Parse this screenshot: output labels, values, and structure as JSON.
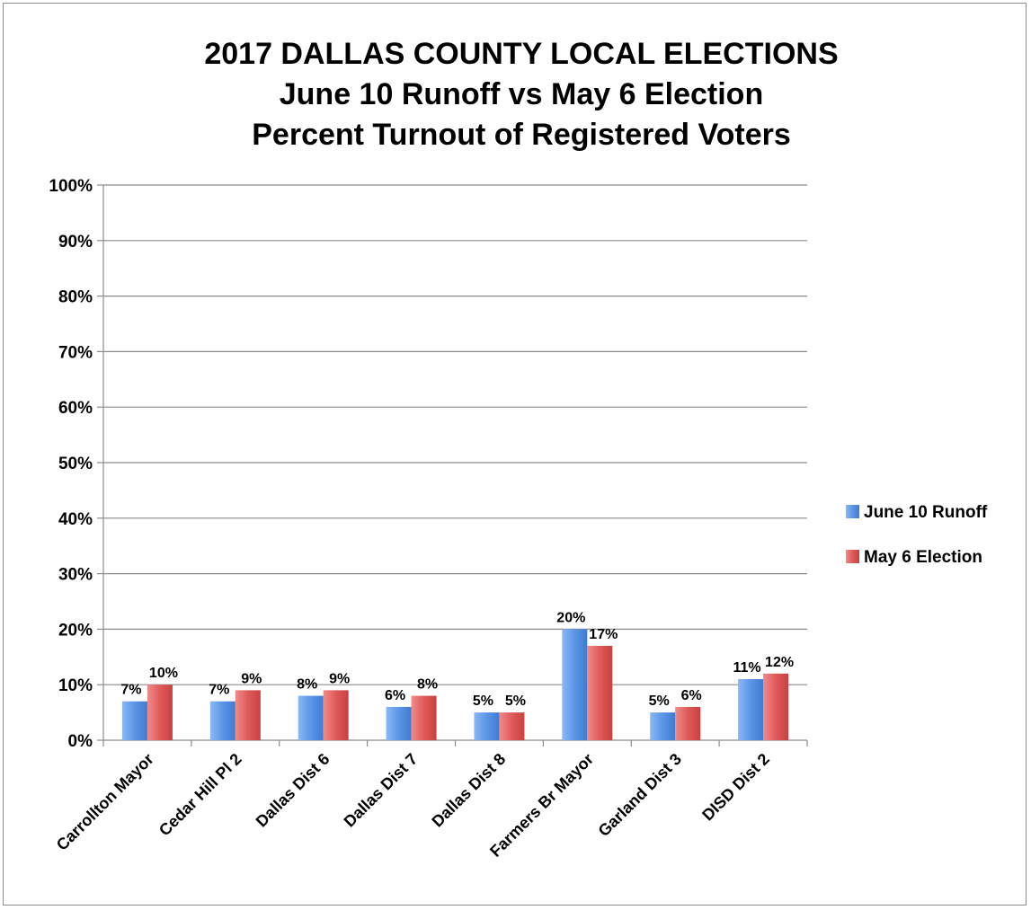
{
  "colors": {
    "series_1": "#5b95e6",
    "series_2": "#e05a5a",
    "gridline": "#8c8c8c",
    "axis": "#8c8c8c"
  },
  "chart_data": {
    "type": "bar",
    "title_lines": [
      "2017 DALLAS COUNTY LOCAL ELECTIONS",
      "June 10 Runoff vs May 6 Election",
      "Percent Turnout of Registered Voters"
    ],
    "xlabel": "",
    "ylabel": "",
    "ylim": [
      0,
      100
    ],
    "yticks": [
      "0%",
      "10%",
      "20%",
      "30%",
      "40%",
      "50%",
      "60%",
      "70%",
      "80%",
      "90%",
      "100%"
    ],
    "grid": true,
    "legend_position": "right",
    "categories": [
      "Carrollton Mayor",
      "Cedar Hill Pl 2",
      "Dallas Dist 6",
      "Dallas Dist 7",
      "Dallas Dist 8",
      "Farmers Br Mayor",
      "Garland Dist 3",
      "DISD Dist 2"
    ],
    "series": [
      {
        "name": "June 10 Runoff",
        "values": [
          7,
          7,
          8,
          6,
          5,
          20,
          5,
          11
        ],
        "labels": [
          "7%",
          "7%",
          "8%",
          "6%",
          "5%",
          "20%",
          "5%",
          "11%"
        ]
      },
      {
        "name": "May 6 Election",
        "values": [
          10,
          9,
          9,
          8,
          5,
          17,
          6,
          12
        ],
        "labels": [
          "10%",
          "9%",
          "9%",
          "8%",
          "5%",
          "17%",
          "6%",
          "12%"
        ]
      }
    ]
  }
}
